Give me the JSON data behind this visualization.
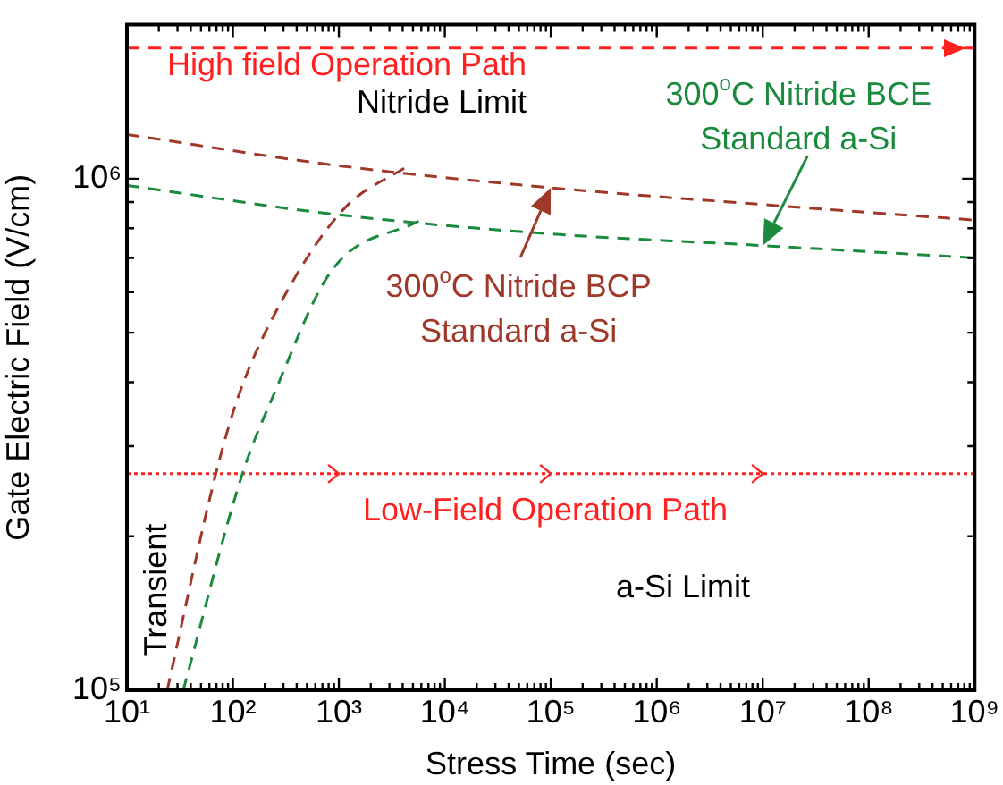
{
  "chart_data": {
    "type": "line",
    "xlabel": "Stress Time (sec)",
    "ylabel": "Gate Electric Field (V/cm)",
    "log": "xy",
    "grid": false,
    "legend": false,
    "xlim": [
      10,
      1000000000
    ],
    "ylim": [
      100000,
      2000000
    ],
    "xticks": [
      {
        "value": 10,
        "label": "10¹"
      },
      {
        "value": 20,
        "label": null
      },
      {
        "value": 30,
        "label": null
      },
      {
        "value": 40,
        "label": null
      },
      {
        "value": 50,
        "label": null
      },
      {
        "value": 60,
        "label": null
      },
      {
        "value": 70,
        "label": null
      },
      {
        "value": 80,
        "label": null
      },
      {
        "value": 90,
        "label": null
      },
      {
        "value": 100,
        "label": "10²"
      },
      {
        "value": 200,
        "label": null
      },
      {
        "value": 300,
        "label": null
      },
      {
        "value": 400,
        "label": null
      },
      {
        "value": 500,
        "label": null
      },
      {
        "value": 600,
        "label": null
      },
      {
        "value": 700,
        "label": null
      },
      {
        "value": 800,
        "label": null
      },
      {
        "value": 900,
        "label": null
      },
      {
        "value": 1000,
        "label": "10³"
      },
      {
        "value": 2000,
        "label": null
      },
      {
        "value": 3000,
        "label": null
      },
      {
        "value": 4000,
        "label": null
      },
      {
        "value": 5000,
        "label": null
      },
      {
        "value": 6000,
        "label": null
      },
      {
        "value": 7000,
        "label": null
      },
      {
        "value": 8000,
        "label": null
      },
      {
        "value": 9000,
        "label": null
      },
      {
        "value": 10000,
        "label": "10⁴"
      },
      {
        "value": 20000,
        "label": null
      },
      {
        "value": 30000,
        "label": null
      },
      {
        "value": 40000,
        "label": null
      },
      {
        "value": 50000,
        "label": null
      },
      {
        "value": 60000,
        "label": null
      },
      {
        "value": 70000,
        "label": null
      },
      {
        "value": 80000,
        "label": null
      },
      {
        "value": 90000,
        "label": null
      },
      {
        "value": 100000,
        "label": "10⁵"
      },
      {
        "value": 200000,
        "label": null
      },
      {
        "value": 300000,
        "label": null
      },
      {
        "value": 400000,
        "label": null
      },
      {
        "value": 500000,
        "label": null
      },
      {
        "value": 600000,
        "label": null
      },
      {
        "value": 700000,
        "label": null
      },
      {
        "value": 800000,
        "label": null
      },
      {
        "value": 900000,
        "label": null
      },
      {
        "value": 1000000,
        "label": "10⁶"
      },
      {
        "value": 2000000,
        "label": null
      },
      {
        "value": 3000000,
        "label": null
      },
      {
        "value": 4000000,
        "label": null
      },
      {
        "value": 5000000,
        "label": null
      },
      {
        "value": 6000000,
        "label": null
      },
      {
        "value": 7000000,
        "label": null
      },
      {
        "value": 8000000,
        "label": null
      },
      {
        "value": 9000000,
        "label": null
      },
      {
        "value": 10000000,
        "label": "10⁷"
      },
      {
        "value": 20000000,
        "label": null
      },
      {
        "value": 30000000,
        "label": null
      },
      {
        "value": 40000000,
        "label": null
      },
      {
        "value": 50000000,
        "label": null
      },
      {
        "value": 60000000,
        "label": null
      },
      {
        "value": 70000000,
        "label": null
      },
      {
        "value": 80000000,
        "label": null
      },
      {
        "value": 90000000,
        "label": null
      },
      {
        "value": 100000000,
        "label": "10⁸"
      },
      {
        "value": 200000000,
        "label": null
      },
      {
        "value": 300000000,
        "label": null
      },
      {
        "value": 400000000,
        "label": null
      },
      {
        "value": 500000000,
        "label": null
      },
      {
        "value": 600000000,
        "label": null
      },
      {
        "value": 700000000,
        "label": null
      },
      {
        "value": 800000000,
        "label": null
      },
      {
        "value": 900000000,
        "label": null
      },
      {
        "value": 1000000000,
        "label": "10⁹"
      }
    ],
    "yticks": [
      {
        "value": 100000,
        "label": "10⁵"
      },
      {
        "value": 200000,
        "label": null
      },
      {
        "value": 300000,
        "label": null
      },
      {
        "value": 400000,
        "label": null
      },
      {
        "value": 500000,
        "label": null
      },
      {
        "value": 600000,
        "label": null
      },
      {
        "value": 700000,
        "label": null
      },
      {
        "value": 800000,
        "label": null
      },
      {
        "value": 900000,
        "label": null
      },
      {
        "value": 1000000,
        "label": "10⁶"
      },
      {
        "value": 2000000,
        "label": null
      }
    ],
    "series": [
      {
        "color": "#ff2020",
        "line_style": "dashed",
        "x": [
          10,
          1000000000
        ],
        "values": [
          1800000,
          1800000
        ]
      },
      {
        "color": "#a0382a",
        "line_style": "dashed",
        "x": [
          10,
          1000,
          100000,
          10000000,
          1000000000
        ],
        "values": [
          1220000,
          1060000,
          960000,
          890000,
          830000
        ]
      },
      {
        "color": "#1a8a3c",
        "line_style": "dashed",
        "x": [
          10,
          1000,
          100000,
          10000000,
          1000000000
        ],
        "values": [
          970000,
          850000,
          780000,
          740000,
          700000
        ]
      },
      {
        "color": "#a0382a",
        "line_style": "dashed",
        "x": [
          24,
          69,
          115,
          280,
          1100,
          4500
        ],
        "values": [
          100000,
          265000,
          380000,
          570000,
          870000,
          1060000
        ]
      },
      {
        "color": "#1a8a3c",
        "line_style": "dashed",
        "x": [
          34,
          123,
          245,
          850,
          5900
        ],
        "values": [
          100000,
          265000,
          380000,
          660000,
          830000
        ]
      },
      {
        "color": "#ff2020",
        "line_style": "dotted",
        "x": [
          10,
          1000,
          100000,
          10000000,
          1000000000
        ],
        "values": [
          265000,
          265000,
          265000,
          265000,
          265000
        ]
      }
    ],
    "annotations": [
      "High field Operation Path",
      "Nitride Limit",
      {
        "text": "300$^{o}$C Nitride BCE\nStandard a-Si",
        "x": 10000000,
        "y": 740000
      },
      {
        "text": "300$^{o}$C Nitride BCP\nStandard a-Si",
        "x": 100000,
        "y": 960000
      },
      "Low-Field Operation Path",
      "a-Si Limit",
      "Transient"
    ]
  }
}
